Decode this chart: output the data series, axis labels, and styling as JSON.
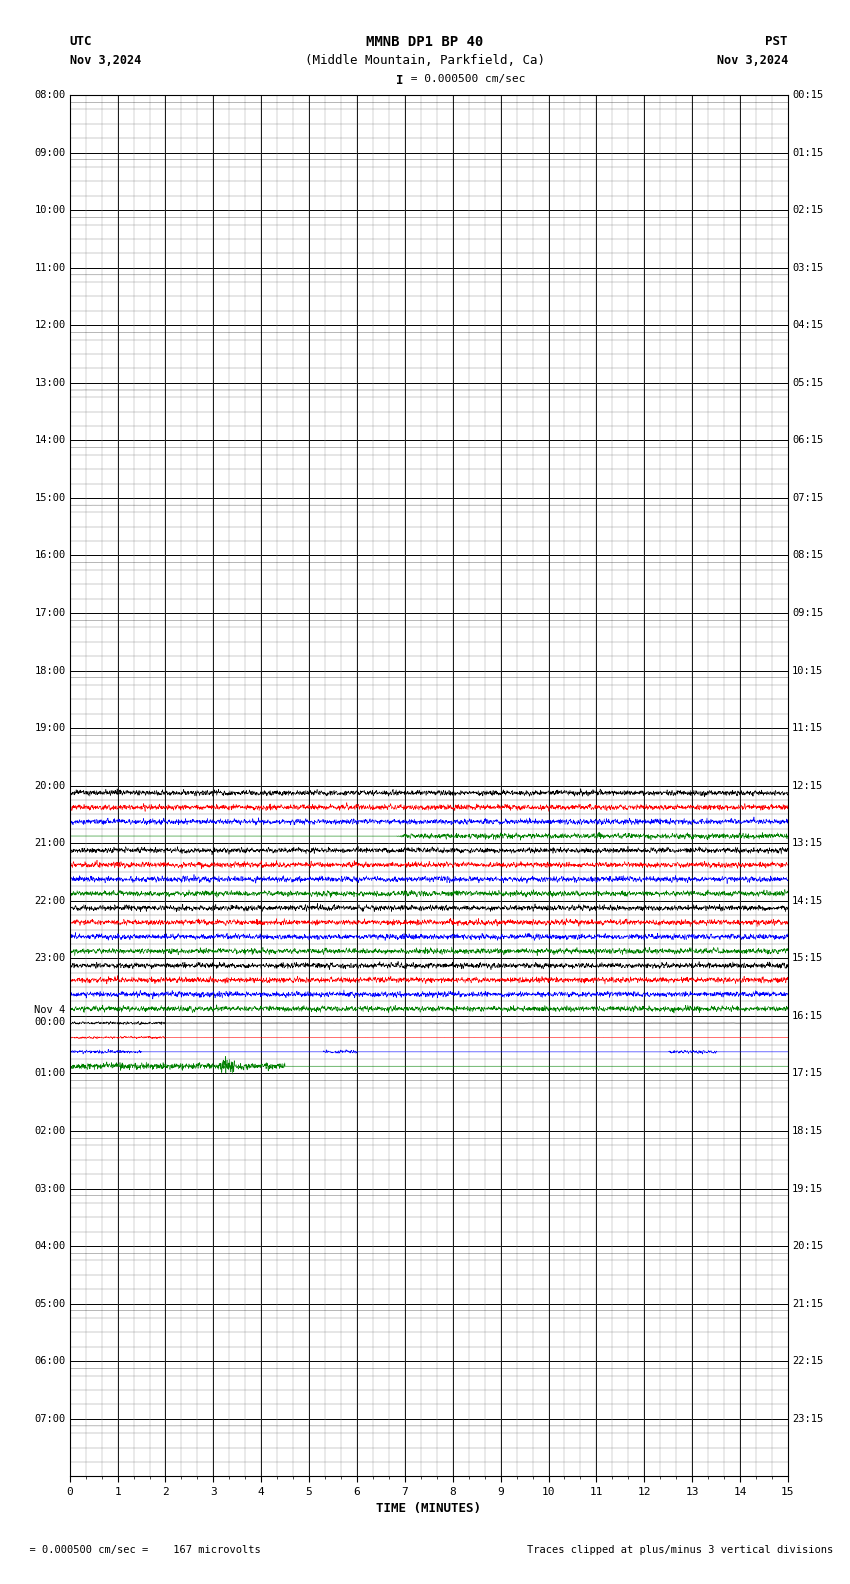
{
  "title_line1": "MMNB DP1 BP 40",
  "title_line2": "(Middle Mountain, Parkfield, Ca)",
  "scale_label": "= 0.000500 cm/sec",
  "utc_label": "UTC",
  "pst_label": "PST",
  "date_left": "Nov 3,2024",
  "date_right": "Nov 3,2024",
  "xlabel": "TIME (MINUTES)",
  "bottom_left": "  = 0.000500 cm/sec =    167 microvolts",
  "bottom_right": "Traces clipped at plus/minus 3 vertical divisions",
  "left_times": [
    "08:00",
    "09:00",
    "10:00",
    "11:00",
    "12:00",
    "13:00",
    "14:00",
    "15:00",
    "16:00",
    "17:00",
    "18:00",
    "19:00",
    "20:00",
    "21:00",
    "22:00",
    "23:00",
    "Nov 4\n00:00",
    "01:00",
    "02:00",
    "03:00",
    "04:00",
    "05:00",
    "06:00",
    "07:00"
  ],
  "right_times": [
    "00:15",
    "01:15",
    "02:15",
    "03:15",
    "04:15",
    "05:15",
    "06:15",
    "07:15",
    "08:15",
    "09:15",
    "10:15",
    "11:15",
    "12:15",
    "13:15",
    "14:15",
    "15:15",
    "16:15",
    "17:15",
    "18:15",
    "19:15",
    "20:15",
    "21:15",
    "22:15",
    "23:15"
  ],
  "n_rows": 24,
  "n_sub": 4,
  "n_minutes": 15,
  "colors": [
    "#000000",
    "#ff0000",
    "#0000ff",
    "#008000"
  ],
  "bg_color": "#ffffff",
  "grid_major_color": "#000000",
  "grid_minor_color": "#888888",
  "signal_rows": [
    12,
    13,
    14,
    15,
    16
  ],
  "noise_amp_inactive": 0.001,
  "signal_amp": 0.12,
  "trace_linewidth": 0.4
}
